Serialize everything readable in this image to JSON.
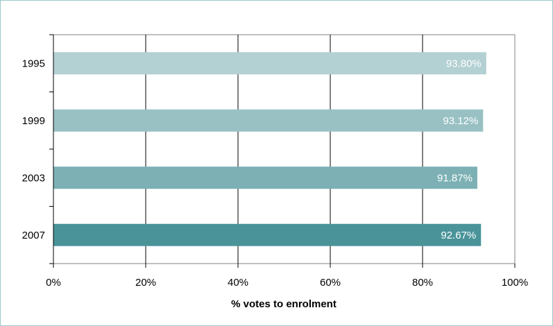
{
  "chart_data": {
    "type": "bar",
    "orientation": "horizontal",
    "categories": [
      "1995",
      "1999",
      "2003",
      "2007"
    ],
    "values": [
      93.8,
      93.12,
      91.87,
      92.67
    ],
    "value_labels": [
      "93.80%",
      "93.12%",
      "91.87%",
      "92.67%"
    ],
    "bar_colors": [
      "#b3d0d3",
      "#99c1c4",
      "#7cb0b4",
      "#4a9499"
    ],
    "title": "",
    "xlabel": "% votes to enrolment",
    "ylabel": "",
    "xlim": [
      0,
      100
    ],
    "x_ticks": [
      0,
      20,
      40,
      60,
      80,
      100
    ],
    "x_tick_labels": [
      "0%",
      "20%",
      "40%",
      "60%",
      "80%",
      "100%"
    ],
    "grid": "vertical",
    "legend": "none"
  }
}
